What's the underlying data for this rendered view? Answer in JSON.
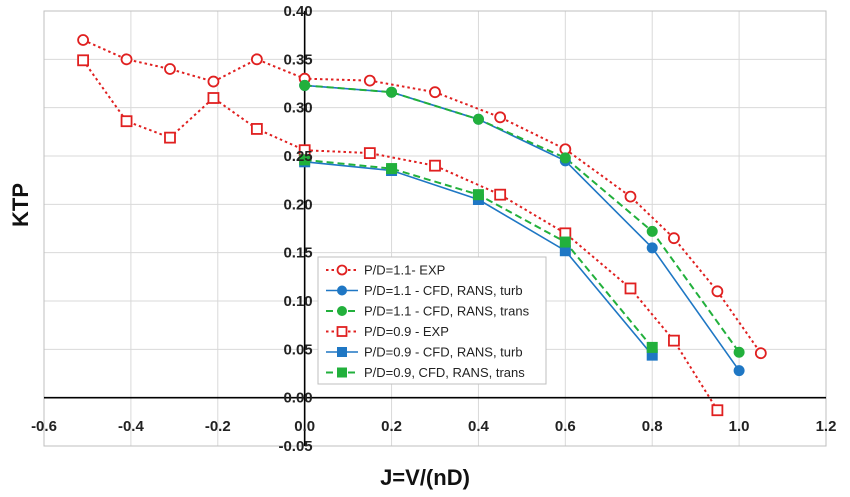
{
  "chart_data": {
    "type": "scatter",
    "xlabel": "J=V/(nD)",
    "ylabel": "KTP",
    "xlim": [
      -0.6,
      1.2
    ],
    "ylim": [
      -0.05,
      0.4
    ],
    "x_ticks": [
      "-0.6",
      "-0.4",
      "-0.2",
      "0.0",
      "0.2",
      "0.4",
      "0.6",
      "0.8",
      "1.0",
      "1.2"
    ],
    "y_ticks": [
      "-0.05",
      "0.00",
      "0.05",
      "0.10",
      "0.15",
      "0.20",
      "0.25",
      "0.30",
      "0.35",
      "0.40"
    ],
    "grid": true,
    "legend_position": "lower-center",
    "series": [
      {
        "name": "P/D=1.1- EXP",
        "color": "#e02020",
        "marker": "circle-open",
        "line": "dotted",
        "points": [
          [
            -0.51,
            0.37
          ],
          [
            -0.41,
            0.35
          ],
          [
            -0.31,
            0.34
          ],
          [
            -0.21,
            0.327
          ],
          [
            -0.11,
            0.35
          ],
          [
            0.0,
            0.33
          ],
          [
            0.15,
            0.328
          ],
          [
            0.3,
            0.316
          ],
          [
            0.45,
            0.29
          ],
          [
            0.6,
            0.257
          ],
          [
            0.75,
            0.208
          ],
          [
            0.85,
            0.165
          ],
          [
            0.95,
            0.11
          ],
          [
            1.05,
            0.046
          ]
        ]
      },
      {
        "name": "P/D=1.1 - CFD, RANS, turb",
        "color": "#1f77c4",
        "marker": "circle-filled",
        "line": "solid",
        "points": [
          [
            0.0,
            0.323
          ],
          [
            0.2,
            0.316
          ],
          [
            0.4,
            0.288
          ],
          [
            0.6,
            0.245
          ],
          [
            0.8,
            0.155
          ],
          [
            1.0,
            0.028
          ]
        ]
      },
      {
        "name": "P/D=1.1 - CFD, RANS, trans",
        "color": "#22b03c",
        "marker": "circle-filled",
        "line": "dashed",
        "points": [
          [
            0.0,
            0.323
          ],
          [
            0.2,
            0.316
          ],
          [
            0.4,
            0.288
          ],
          [
            0.6,
            0.248
          ],
          [
            0.8,
            0.172
          ],
          [
            1.0,
            0.047
          ]
        ]
      },
      {
        "name": "P/D=0.9 - EXP",
        "color": "#e02020",
        "marker": "square-open",
        "line": "dotted",
        "points": [
          [
            -0.51,
            0.349
          ],
          [
            -0.41,
            0.286
          ],
          [
            -0.31,
            0.269
          ],
          [
            -0.21,
            0.31
          ],
          [
            -0.11,
            0.278
          ],
          [
            0.0,
            0.256
          ],
          [
            0.15,
            0.253
          ],
          [
            0.3,
            0.24
          ],
          [
            0.45,
            0.21
          ],
          [
            0.6,
            0.17
          ],
          [
            0.75,
            0.113
          ],
          [
            0.85,
            0.059
          ],
          [
            0.95,
            -0.013
          ]
        ]
      },
      {
        "name": "P/D=0.9 - CFD, RANS, turb",
        "color": "#1f77c4",
        "marker": "square-filled",
        "line": "solid",
        "points": [
          [
            0.0,
            0.244
          ],
          [
            0.2,
            0.235
          ],
          [
            0.4,
            0.205
          ],
          [
            0.6,
            0.152
          ],
          [
            0.8,
            0.044
          ]
        ]
      },
      {
        "name": "P/D=0.9, CFD, RANS, trans",
        "color": "#22b03c",
        "marker": "square-filled",
        "line": "dashed",
        "points": [
          [
            0.0,
            0.246
          ],
          [
            0.2,
            0.237
          ],
          [
            0.4,
            0.21
          ],
          [
            0.6,
            0.161
          ],
          [
            0.8,
            0.052
          ]
        ]
      }
    ]
  }
}
